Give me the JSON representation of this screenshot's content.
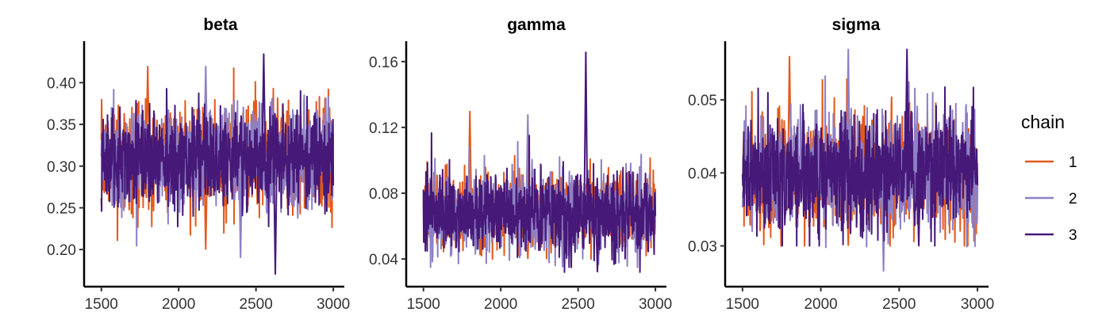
{
  "chart_data": {
    "type": "line",
    "legend": {
      "title": "chain",
      "position": "right",
      "entries": [
        {
          "label": "1",
          "color": "#e35a1b"
        },
        {
          "label": "2",
          "color": "#8e80c4"
        },
        {
          "label": "3",
          "color": "#461978"
        }
      ]
    },
    "grid": false,
    "panels": [
      {
        "title": "beta",
        "xlim": [
          1450,
          3020
        ],
        "ylim": [
          0.165,
          0.445
        ],
        "xticks": [
          1500,
          2000,
          2500,
          3000
        ],
        "xtick_labels": [
          "1500",
          "2000",
          "2500",
          "3000"
        ],
        "yticks": [
          0.2,
          0.25,
          0.3,
          0.35,
          0.4
        ],
        "ytick_labels": [
          "0.20",
          "0.25",
          "0.30",
          "0.35",
          "0.40"
        ],
        "iterations": [
          1500,
          3000
        ],
        "series": [
          {
            "name": "1",
            "mean": 0.31,
            "sd": 0.032,
            "min": 0.2,
            "max": 0.42
          },
          {
            "name": "2",
            "mean": 0.31,
            "sd": 0.031,
            "min": 0.19,
            "max": 0.42
          },
          {
            "name": "3",
            "mean": 0.31,
            "sd": 0.03,
            "min": 0.17,
            "max": 0.435
          }
        ]
      },
      {
        "title": "gamma",
        "xlim": [
          1450,
          3020
        ],
        "ylim": [
          0.028,
          0.17
        ],
        "xticks": [
          1500,
          2000,
          2500,
          3000
        ],
        "xtick_labels": [
          "1500",
          "2000",
          "2500",
          "3000"
        ],
        "yticks": [
          0.04,
          0.08,
          0.12,
          0.16
        ],
        "ytick_labels": [
          "0.04",
          "0.08",
          "0.12",
          "0.16"
        ],
        "iterations": [
          1500,
          3000
        ],
        "series": [
          {
            "name": "1",
            "mean": 0.069,
            "sd": 0.012,
            "min": 0.04,
            "max": 0.13
          },
          {
            "name": "2",
            "mean": 0.069,
            "sd": 0.012,
            "min": 0.035,
            "max": 0.128
          },
          {
            "name": "3",
            "mean": 0.069,
            "sd": 0.012,
            "min": 0.032,
            "max": 0.166
          }
        ]
      },
      {
        "title": "sigma",
        "xlim": [
          1450,
          3020
        ],
        "ylim": [
          0.0255,
          0.0575
        ],
        "xticks": [
          1500,
          2000,
          2500,
          3000
        ],
        "xtick_labels": [
          "1500",
          "2000",
          "2500",
          "3000"
        ],
        "yticks": [
          0.03,
          0.04,
          0.05
        ],
        "ytick_labels": [
          "0.03",
          "0.04",
          "0.05"
        ],
        "iterations": [
          1500,
          3000
        ],
        "series": [
          {
            "name": "1",
            "mean": 0.04,
            "sd": 0.004,
            "min": 0.03,
            "max": 0.056
          },
          {
            "name": "2",
            "mean": 0.04,
            "sd": 0.004,
            "min": 0.0265,
            "max": 0.057
          },
          {
            "name": "3",
            "mean": 0.04,
            "sd": 0.0038,
            "min": 0.03,
            "max": 0.057
          }
        ]
      }
    ]
  }
}
